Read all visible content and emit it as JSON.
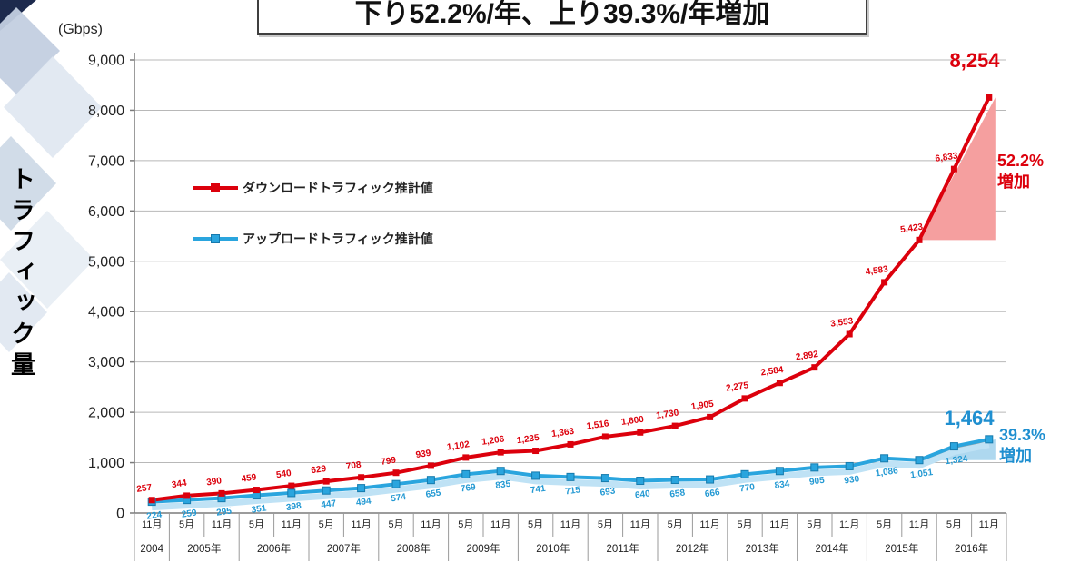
{
  "title": {
    "text": "下り52.2%/年、上り39.3%/年増加"
  },
  "y_axis": {
    "unit_label": "(Gbps)",
    "axis_title": "トラフィック量"
  },
  "legend": {
    "download": {
      "label": "ダウンロードトラフィック推計値",
      "color": "#dc000c"
    },
    "upload": {
      "label": "アップロードトラフィック推計値",
      "color": "#2aa5de"
    }
  },
  "annotations": {
    "download_peak": "8,254",
    "upload_peak": "1,464",
    "download_growth_value": "52.2%",
    "download_growth_suffix": "増加",
    "upload_growth_value": "39.3%",
    "upload_growth_suffix": "増加"
  },
  "chart_data": {
    "type": "line",
    "title": "下り52.2%/年、上り39.3%/年増加",
    "ylabel": "トラフィック量",
    "y_unit": "Gbps",
    "ylim": [
      0,
      9000
    ],
    "y_tick_step": 1000,
    "grid": true,
    "legend_position": "upper-left-inside",
    "month_ticks": [
      "11月",
      "5月",
      "11月",
      "5月",
      "11月",
      "5月",
      "11月",
      "5月",
      "11月",
      "5月",
      "11月",
      "5月",
      "11月",
      "5月",
      "11月",
      "5月",
      "11月",
      "5月",
      "11月",
      "5月",
      "11月",
      "5月",
      "11月",
      "5月",
      "11月"
    ],
    "year_ticks": [
      {
        "label": "2004",
        "cells": 1
      },
      {
        "label": "2005年",
        "cells": 2
      },
      {
        "label": "2006年",
        "cells": 2
      },
      {
        "label": "2007年",
        "cells": 2
      },
      {
        "label": "2008年",
        "cells": 2
      },
      {
        "label": "2009年",
        "cells": 2
      },
      {
        "label": "2010年",
        "cells": 2
      },
      {
        "label": "2011年",
        "cells": 2
      },
      {
        "label": "2012年",
        "cells": 2
      },
      {
        "label": "2013年",
        "cells": 2
      },
      {
        "label": "2014年",
        "cells": 2
      },
      {
        "label": "2015年",
        "cells": 2
      },
      {
        "label": "2016年",
        "cells": 2
      }
    ],
    "series": [
      {
        "name": "ダウンロードトラフィック推計値",
        "color": "#dc000c",
        "values": [
          257,
          344,
          390,
          459,
          540,
          629,
          708,
          799,
          939,
          1102,
          1206,
          1235,
          1363,
          1516,
          1600,
          1730,
          1905,
          2275,
          2584,
          2892,
          3553,
          4583,
          5423,
          6833,
          8254
        ]
      },
      {
        "name": "アップロードトラフィック推計値",
        "color": "#2aa5de",
        "values": [
          224,
          259,
          295,
          351,
          398,
          447,
          494,
          574,
          655,
          769,
          835,
          741,
          715,
          693,
          640,
          658,
          666,
          770,
          834,
          905,
          930,
          1086,
          1051,
          1324,
          1464
        ]
      }
    ]
  }
}
